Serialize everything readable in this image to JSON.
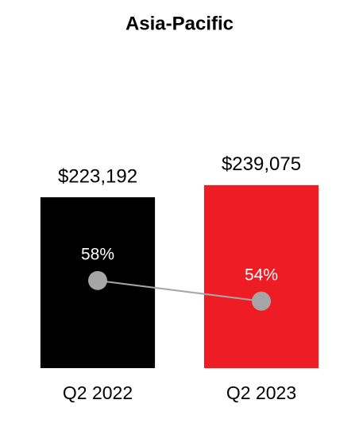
{
  "chart_data": {
    "type": "bar",
    "title": "Asia-Pacific",
    "categories": [
      "Q2 2022",
      "Q2 2023"
    ],
    "series": [
      {
        "type": "bar",
        "colors": [
          "#000000",
          "#ee1c25"
        ],
        "values": [
          223192,
          239075
        ],
        "value_labels": [
          "$223,192",
          "$239,075"
        ]
      },
      {
        "type": "line",
        "axis": "y2",
        "color": "#a6a6a6",
        "values": [
          58,
          54
        ],
        "value_labels": [
          "58%",
          "54%"
        ]
      }
    ],
    "ylim": [
      0,
      350000
    ],
    "y2lim": [
      41,
      93
    ]
  }
}
